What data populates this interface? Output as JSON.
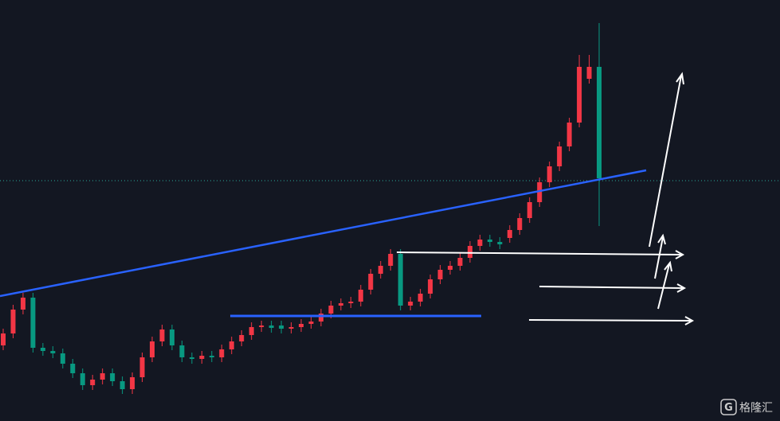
{
  "chart_data": {
    "type": "candlestick",
    "up_color": "#f23645",
    "down_color": "#089981",
    "ylim": [
      0,
      529
    ],
    "price_line": 302,
    "price_line_color": "#2aa89a",
    "series": {
      "open": [
        95,
        110,
        140,
        155,
        92,
        88,
        85,
        72,
        60,
        45,
        52,
        60,
        50,
        40,
        55,
        80,
        100,
        115,
        95,
        80,
        78,
        82,
        80,
        90,
        100,
        108,
        118,
        120,
        120,
        116,
        118,
        122,
        125,
        135,
        145,
        148,
        150,
        165,
        185,
        195,
        210,
        145,
        150,
        160,
        178,
        190,
        195,
        205,
        220,
        228,
        225,
        230,
        240,
        255,
        275,
        300,
        320,
        345,
        375,
        430,
        445
      ],
      "high": [
        116,
        146,
        161,
        161,
        98,
        94,
        91,
        78,
        66,
        58,
        66,
        66,
        56,
        61,
        86,
        106,
        121,
        121,
        101,
        86,
        88,
        88,
        96,
        106,
        114,
        124,
        126,
        126,
        126,
        124,
        128,
        131,
        141,
        151,
        154,
        156,
        171,
        191,
        201,
        216,
        216,
        156,
        166,
        184,
        196,
        201,
        211,
        226,
        234,
        234,
        231,
        246,
        261,
        281,
        306,
        326,
        351,
        381,
        460,
        460,
        500
      ],
      "low": [
        89,
        104,
        134,
        86,
        82,
        79,
        66,
        54,
        39,
        39,
        46,
        44,
        34,
        34,
        49,
        74,
        94,
        89,
        74,
        72,
        72,
        74,
        74,
        84,
        94,
        102,
        112,
        111,
        110,
        110,
        112,
        116,
        119,
        129,
        139,
        142,
        144,
        159,
        179,
        189,
        139,
        139,
        144,
        154,
        172,
        184,
        189,
        199,
        214,
        219,
        216,
        224,
        234,
        249,
        269,
        294,
        314,
        339,
        369,
        424,
        245
      ],
      "close": [
        110,
        140,
        155,
        92,
        88,
        85,
        72,
        60,
        45,
        52,
        60,
        50,
        40,
        55,
        80,
        100,
        115,
        95,
        80,
        78,
        82,
        80,
        90,
        100,
        108,
        118,
        120,
        117,
        116,
        118,
        122,
        125,
        135,
        145,
        148,
        150,
        165,
        185,
        195,
        210,
        145,
        150,
        160,
        178,
        190,
        195,
        205,
        220,
        228,
        225,
        222,
        240,
        255,
        275,
        300,
        320,
        345,
        375,
        445,
        445,
        305
      ]
    }
  },
  "watermark": {
    "logo": "G",
    "text": "格隆汇"
  }
}
